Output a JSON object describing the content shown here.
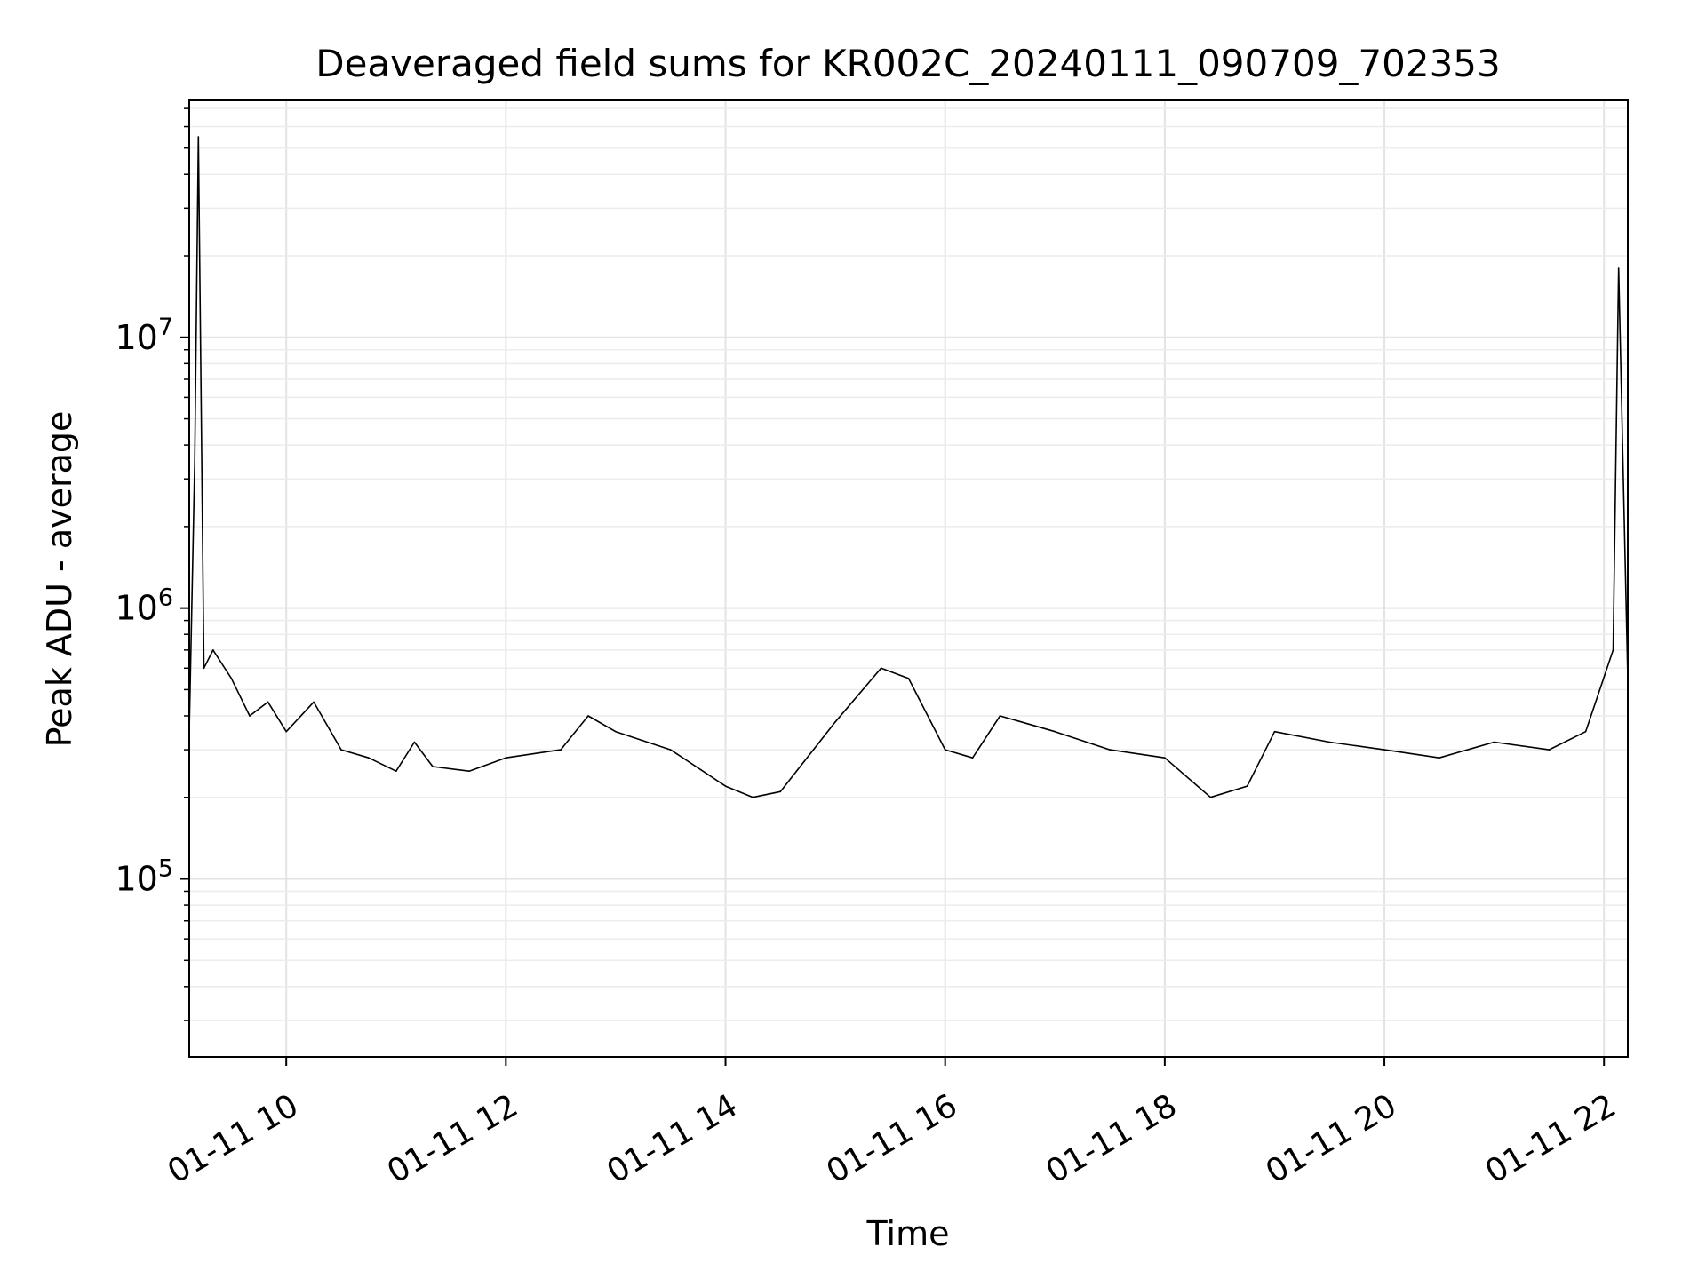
{
  "chart_data": {
    "type": "line",
    "title": "Deaveraged field sums for KR002C_20240111_090709_702353",
    "xlabel": "Time",
    "ylabel": "Peak ADU - average",
    "xscale": "time",
    "yscale": "log",
    "xlim": [
      "2024-01-11 09:07",
      "2024-01-11 22:13"
    ],
    "ylim": [
      22000,
      75000000
    ],
    "grid": true,
    "line_color": "#000000",
    "x_ticks": [
      {
        "value": "2024-01-11 10:00",
        "label": "01-11 10"
      },
      {
        "value": "2024-01-11 12:00",
        "label": "01-11 12"
      },
      {
        "value": "2024-01-11 14:00",
        "label": "01-11 14"
      },
      {
        "value": "2024-01-11 16:00",
        "label": "01-11 16"
      },
      {
        "value": "2024-01-11 18:00",
        "label": "01-11 18"
      },
      {
        "value": "2024-01-11 20:00",
        "label": "01-11 20"
      },
      {
        "value": "2024-01-11 22:00",
        "label": "01-11 22"
      }
    ],
    "y_ticks": [
      {
        "value": 100000,
        "base": "10",
        "exp": "5"
      },
      {
        "value": 1000000,
        "base": "10",
        "exp": "6"
      },
      {
        "value": 10000000,
        "base": "10",
        "exp": "7"
      }
    ],
    "series": [
      {
        "x": [
          "2024-01-11 09:07",
          "2024-01-11 09:10",
          "2024-01-11 09:12",
          "2024-01-11 09:15",
          "2024-01-11 09:20",
          "2024-01-11 09:30",
          "2024-01-11 09:40",
          "2024-01-11 09:50",
          "2024-01-11 10:00",
          "2024-01-11 10:15",
          "2024-01-11 10:30",
          "2024-01-11 10:45",
          "2024-01-11 11:00",
          "2024-01-11 11:10",
          "2024-01-11 11:20",
          "2024-01-11 11:40",
          "2024-01-11 12:00",
          "2024-01-11 12:30",
          "2024-01-11 12:45",
          "2024-01-11 13:00",
          "2024-01-11 13:30",
          "2024-01-11 14:00",
          "2024-01-11 14:15",
          "2024-01-11 14:30",
          "2024-01-11 15:00",
          "2024-01-11 15:25",
          "2024-01-11 15:40",
          "2024-01-11 16:00",
          "2024-01-11 16:15",
          "2024-01-11 16:30",
          "2024-01-11 17:00",
          "2024-01-11 17:30",
          "2024-01-11 18:00",
          "2024-01-11 18:25",
          "2024-01-11 18:45",
          "2024-01-11 19:00",
          "2024-01-11 19:30",
          "2024-01-11 20:00",
          "2024-01-11 20:30",
          "2024-01-11 21:00",
          "2024-01-11 21:30",
          "2024-01-11 21:50",
          "2024-01-11 22:05",
          "2024-01-11 22:08",
          "2024-01-11 22:13"
        ],
        "y": [
          350000,
          3500000,
          55000000,
          600000,
          700000,
          550000,
          400000,
          450000,
          350000,
          450000,
          300000,
          280000,
          250000,
          320000,
          260000,
          250000,
          280000,
          300000,
          400000,
          350000,
          300000,
          220000,
          200000,
          210000,
          380000,
          600000,
          550000,
          300000,
          280000,
          400000,
          350000,
          300000,
          280000,
          200000,
          220000,
          350000,
          320000,
          300000,
          280000,
          320000,
          300000,
          350000,
          700000,
          18000000,
          550000
        ]
      }
    ]
  }
}
